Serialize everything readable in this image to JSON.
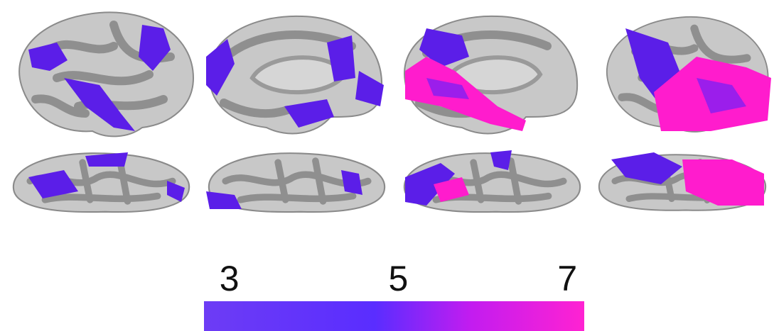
{
  "colorbar": {
    "lim": [
      2.7,
      7.2
    ],
    "ticks": [
      3,
      5,
      7
    ]
  }
}
